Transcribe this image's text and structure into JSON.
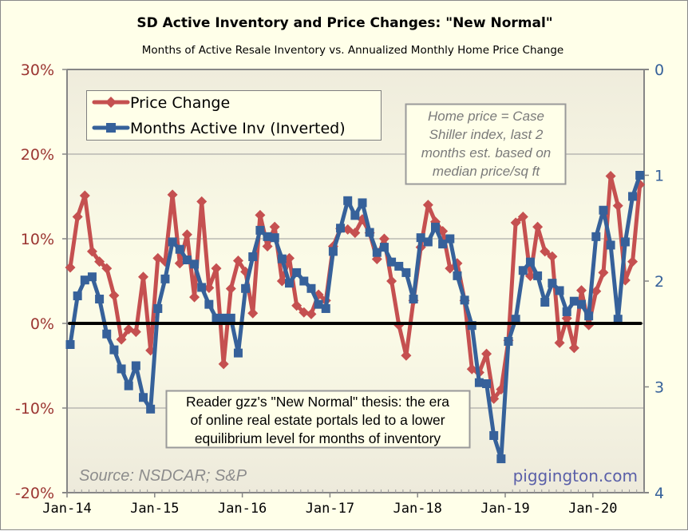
{
  "chart_data": {
    "type": "line",
    "title": "SD Active Inventory and Price Changes: \"New Normal\"",
    "subtitle": "Months of Active Resale Inventory vs. Annualized Monthly Home Price Change",
    "x_start": "Jan-14",
    "x_tick_labels": [
      "Jan-14",
      "Jan-15",
      "Jan-16",
      "Jan-17",
      "Jan-18",
      "Jan-19",
      "Jan-20"
    ],
    "y_left": {
      "range": [
        -20,
        30
      ],
      "tick_labels": [
        "30%",
        "20%",
        "10%",
        "0%",
        "-10%",
        "-20%"
      ],
      "tick_values": [
        30,
        20,
        10,
        0,
        -10,
        -20
      ],
      "color": "#9b3531"
    },
    "y_right": {
      "range": [
        0,
        4
      ],
      "inverted": true,
      "tick_labels": [
        "0",
        "1",
        "2",
        "3",
        "4"
      ],
      "tick_values": [
        0,
        1,
        2,
        3,
        4
      ],
      "color": "#36619a"
    },
    "grid": "horizontal, 10% intervals",
    "zero_line": true,
    "legend_position": "top-left",
    "series": [
      {
        "name": "Price Change",
        "axis": "left",
        "unit": "%",
        "color": "#c55050",
        "marker": "diamond",
        "values": [
          6.6,
          12.6,
          15.1,
          8.5,
          7.3,
          6.5,
          3.3,
          -1.9,
          -0.7,
          -1.0,
          5.5,
          -3.2,
          7.7,
          7.3,
          15.2,
          7.1,
          10.5,
          3.1,
          14.4,
          4.2,
          6.5,
          -4.8,
          4.1,
          7.4,
          6.1,
          1.2,
          12.8,
          9.1,
          11.4,
          5.0,
          7.7,
          2.1,
          1.3,
          1.1,
          3.4,
          2.7,
          9.1,
          11.2,
          11.1,
          10.7,
          12.3,
          10.7,
          7.6,
          10.0,
          5.0,
          -0.2,
          -3.8,
          2.7,
          9.0,
          14.0,
          12.0,
          10.9,
          6.5,
          7.1,
          2.7,
          -5.4,
          -5.8,
          -3.6,
          -8.9,
          -7.8,
          -2.0,
          11.9,
          12.6,
          5.6,
          11.4,
          8.5,
          7.9,
          -2.3,
          0.6,
          -2.9,
          3.9,
          -0.2,
          3.8,
          6.0,
          17.4,
          13.9,
          5.1,
          7.3,
          16.4
        ]
      },
      {
        "name": "Months Active Inv (Inverted)",
        "axis": "right",
        "unit": "months",
        "color": "#36619a",
        "marker": "square",
        "values": [
          2.6,
          2.14,
          1.99,
          1.96,
          2.17,
          2.5,
          2.65,
          2.83,
          2.99,
          2.8,
          3.1,
          3.21,
          2.26,
          1.98,
          1.63,
          1.7,
          1.8,
          1.84,
          2.06,
          2.22,
          2.35,
          2.35,
          2.35,
          2.68,
          2.07,
          1.77,
          1.52,
          1.58,
          1.59,
          1.79,
          2.02,
          1.92,
          2.0,
          2.07,
          2.22,
          2.26,
          1.72,
          1.5,
          1.24,
          1.38,
          1.26,
          1.54,
          1.73,
          1.68,
          1.82,
          1.86,
          1.92,
          2.17,
          1.59,
          1.63,
          1.49,
          1.65,
          1.6,
          1.95,
          2.18,
          2.42,
          2.96,
          2.97,
          3.46,
          3.68,
          2.57,
          2.36,
          1.9,
          1.82,
          1.95,
          2.2,
          2.02,
          2.09,
          2.29,
          2.19,
          2.22,
          2.33,
          1.58,
          1.33,
          1.66,
          2.36,
          1.63,
          1.2,
          1.0
        ]
      }
    ],
    "annotations": {
      "note": [
        "Home price = Case",
        "Shiller index, last 2",
        "months est. based on",
        "median price/sq ft"
      ],
      "thesis": [
        "Reader gzz's \"New Normal\" thesis: the era",
        "of online real estate portals led to a lower",
        "equilibrium level for months of inventory"
      ],
      "source": "Source: NSDCAR; S&P",
      "brand": "piggington.com"
    }
  }
}
